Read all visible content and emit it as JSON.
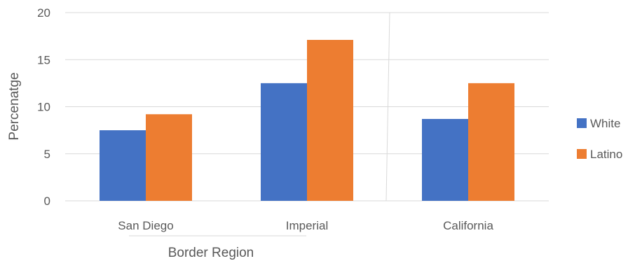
{
  "chart_data": {
    "type": "bar",
    "title": "",
    "xlabel": "Border Region",
    "ylabel": "Percenatge",
    "ylim": [
      0,
      20
    ],
    "yticks": [
      0,
      5,
      10,
      15,
      20
    ],
    "categories": [
      "San Diego",
      "Imperial",
      "California"
    ],
    "grid": true,
    "legend_position": "right",
    "series": [
      {
        "name": "White",
        "values": [
          7.5,
          12.5,
          8.7
        ],
        "color": "#4472c4"
      },
      {
        "name": "Latino",
        "values": [
          9.2,
          17.1,
          12.5
        ],
        "color": "#ed7d31"
      }
    ]
  }
}
